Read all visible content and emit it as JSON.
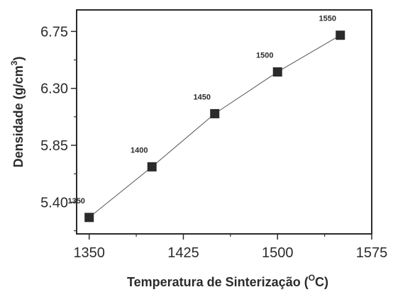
{
  "chart_data": {
    "type": "line",
    "title": "",
    "xlabel_prefix": "Temperatura de Sinterização (",
    "xlabel_sup": "O",
    "xlabel_suffix": "C)",
    "ylabel_prefix": "Densidade (g/cm",
    "ylabel_sup": "3",
    "ylabel_suffix": ")",
    "xlim": [
      1340,
      1575
    ],
    "ylim": [
      5.15,
      6.92
    ],
    "x_ticks": [
      1350,
      1425,
      1500,
      1575
    ],
    "x_tick_labels": [
      "1350",
      "1425",
      "1500",
      "1575"
    ],
    "y_ticks": [
      5.4,
      5.85,
      6.3,
      6.75
    ],
    "y_tick_labels": [
      "5.40",
      "5.85",
      "6.30",
      "6.75"
    ],
    "x": [
      1350,
      1400,
      1450,
      1500,
      1550
    ],
    "y": [
      5.28,
      5.68,
      6.1,
      6.43,
      6.72
    ],
    "point_labels": [
      "1350",
      "1400",
      "1450",
      "1500",
      "1550"
    ],
    "marker": "square",
    "colors": {
      "marker": "#2b2b2b",
      "line": "#555555",
      "axis": "#2b2b2b"
    }
  }
}
